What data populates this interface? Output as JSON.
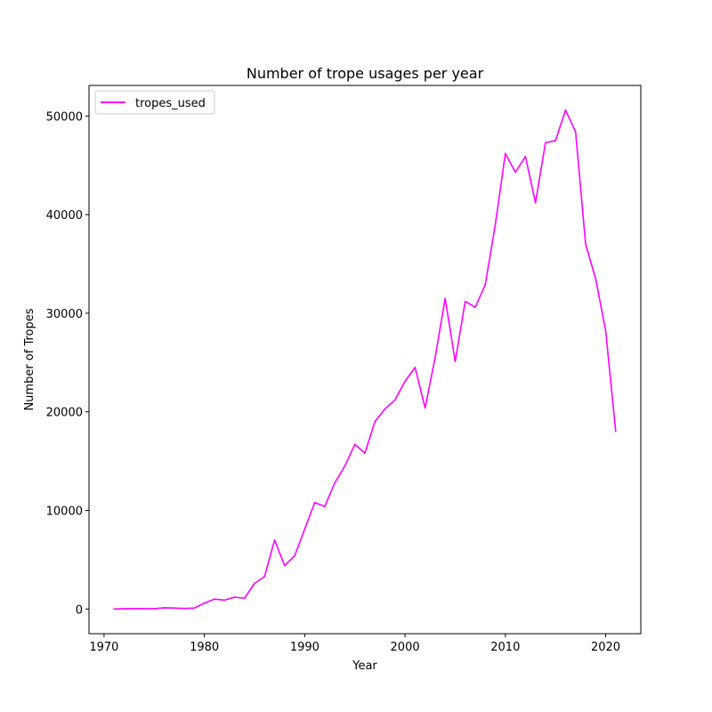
{
  "chart_data": {
    "type": "line",
    "title": "Number of trope usages per year",
    "xlabel": "Year",
    "ylabel": "Number of Tropes",
    "xlim": [
      1968.5,
      2023.5
    ],
    "ylim": [
      -2500,
      53100
    ],
    "xticks": [
      1970,
      1980,
      1990,
      2000,
      2010,
      2020
    ],
    "yticks": [
      0,
      10000,
      20000,
      30000,
      40000,
      50000
    ],
    "grid": false,
    "legend_position": "top-left",
    "series": [
      {
        "name": "tropes_used",
        "color": "#ff00ff",
        "x": [
          1971,
          1972,
          1973,
          1974,
          1975,
          1976,
          1977,
          1978,
          1979,
          1980,
          1981,
          1982,
          1983,
          1984,
          1985,
          1986,
          1987,
          1988,
          1989,
          1990,
          1991,
          1992,
          1993,
          1994,
          1995,
          1996,
          1997,
          1998,
          1999,
          2000,
          2001,
          2002,
          2003,
          2004,
          2005,
          2006,
          2007,
          2008,
          2009,
          2010,
          2011,
          2012,
          2013,
          2014,
          2015,
          2016,
          2017,
          2018,
          2019,
          2020,
          2021
        ],
        "y": [
          0,
          30,
          40,
          50,
          30,
          120,
          100,
          60,
          100,
          600,
          1000,
          900,
          1200,
          1100,
          2600,
          3300,
          7000,
          4400,
          5400,
          8100,
          10800,
          10400,
          12800,
          14500,
          16700,
          15800,
          19000,
          20300,
          21200,
          23100,
          24500,
          20400,
          25500,
          31500,
          25100,
          31200,
          30600,
          32900,
          39000,
          46200,
          44300,
          45900,
          41200,
          47300,
          47500,
          50600,
          48400,
          37000,
          33500,
          28200,
          18000
        ]
      }
    ]
  }
}
